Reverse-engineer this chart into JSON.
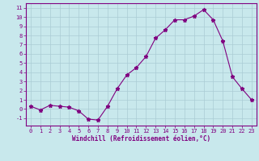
{
  "x": [
    0,
    1,
    2,
    3,
    4,
    5,
    6,
    7,
    8,
    9,
    10,
    11,
    12,
    13,
    14,
    15,
    16,
    17,
    18,
    19,
    20,
    21,
    22,
    23
  ],
  "y": [
    0.3,
    -0.1,
    0.4,
    0.3,
    0.2,
    -0.2,
    -1.1,
    -1.2,
    0.3,
    2.2,
    3.7,
    4.5,
    5.7,
    7.7,
    8.6,
    9.7,
    9.7,
    10.1,
    10.8,
    9.7,
    7.4,
    3.5,
    2.2,
    1.0
  ],
  "line_color": "#800080",
  "bg_color": "#c8e8ec",
  "grid_color": "#aaccd4",
  "xlabel": "Windchill (Refroidissement éolien,°C)",
  "ylim": [
    -1.8,
    11.5
  ],
  "xlim": [
    -0.5,
    23.5
  ],
  "yticks": [
    -1,
    0,
    1,
    2,
    3,
    4,
    5,
    6,
    7,
    8,
    9,
    10,
    11
  ],
  "xticks": [
    0,
    1,
    2,
    3,
    4,
    5,
    6,
    7,
    8,
    9,
    10,
    11,
    12,
    13,
    14,
    15,
    16,
    17,
    18,
    19,
    20,
    21,
    22,
    23
  ],
  "axis_color": "#800080",
  "tick_color": "#800080",
  "tick_labelsize": 5,
  "xlabel_fontsize": 5.5,
  "marker": "*",
  "markersize": 3.5,
  "linewidth": 0.8
}
